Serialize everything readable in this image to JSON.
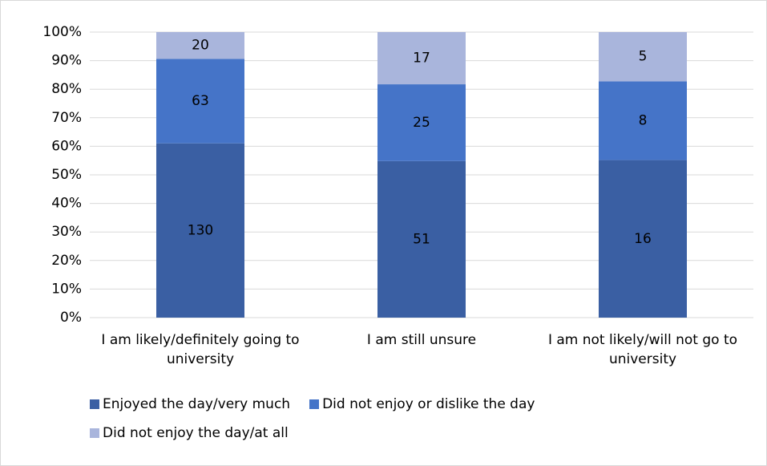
{
  "chart_data": {
    "type": "bar",
    "stacking": "percent",
    "categories": [
      "I am likely/definitely going to university",
      "I am still unsure",
      "I am not likely/will not go to university"
    ],
    "series": [
      {
        "name": "Enjoyed the day/very much",
        "color": "#3a5fa3",
        "values": [
          130,
          51,
          16
        ]
      },
      {
        "name": "Did not enjoy or dislike the day",
        "color": "#4574c8",
        "values": [
          63,
          25,
          8
        ]
      },
      {
        "name": "Did not enjoy the day/at all",
        "color": "#a9b5dc",
        "values": [
          20,
          17,
          5
        ]
      }
    ],
    "ylim": [
      0,
      100
    ],
    "yticks": [
      {
        "value": 0,
        "label": "0%"
      },
      {
        "value": 10,
        "label": "10%"
      },
      {
        "value": 20,
        "label": "20%"
      },
      {
        "value": 30,
        "label": "30%"
      },
      {
        "value": 40,
        "label": "40%"
      },
      {
        "value": 50,
        "label": "50%"
      },
      {
        "value": 60,
        "label": "60%"
      },
      {
        "value": 70,
        "label": "70%"
      },
      {
        "value": 80,
        "label": "80%"
      },
      {
        "value": 90,
        "label": "90%"
      },
      {
        "value": 100,
        "label": "100%"
      }
    ],
    "grid": true
  }
}
